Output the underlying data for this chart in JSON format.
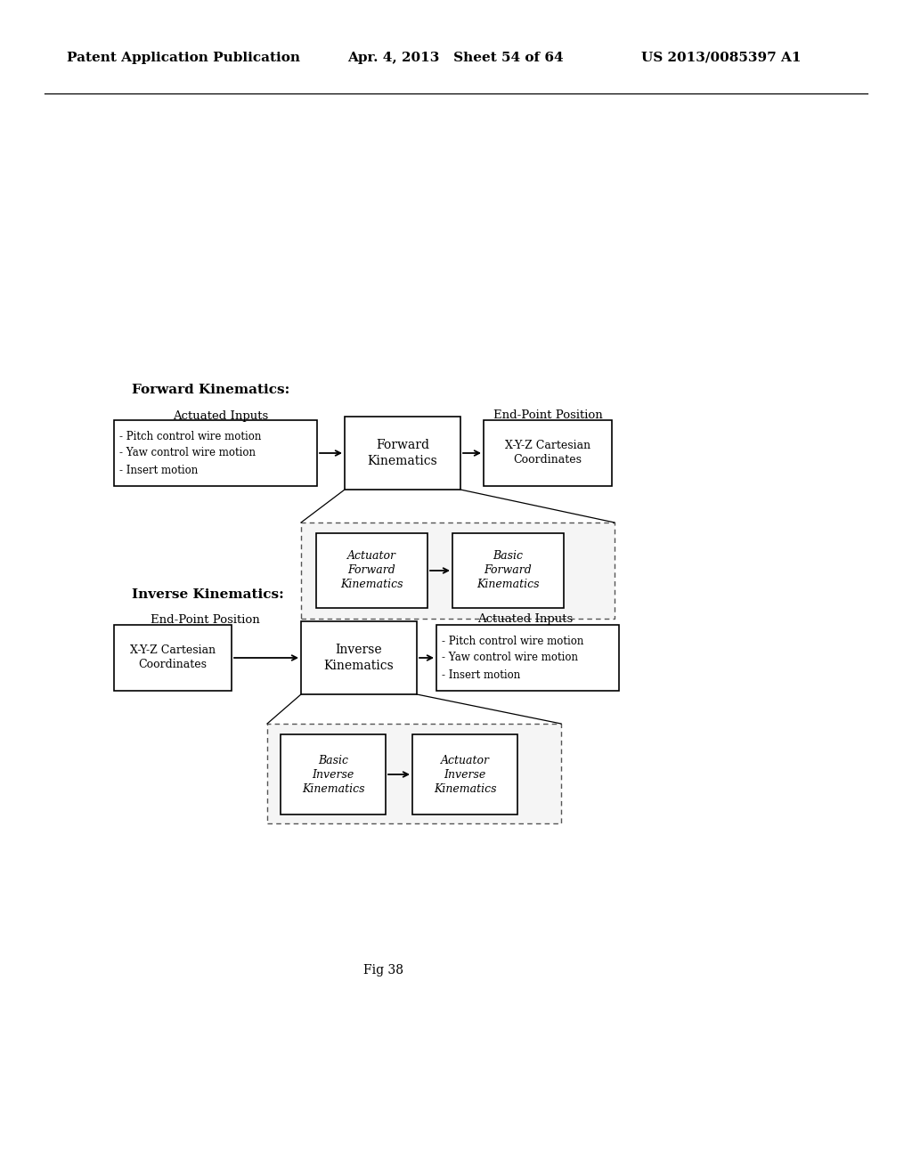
{
  "bg_color": "#ffffff",
  "header_left": "Patent Application Publication",
  "header_mid": "Apr. 4, 2013   Sheet 54 of 64",
  "header_right": "US 2013/0085397 A1",
  "fig_label": "Fig 38",
  "forward_title": "Forward Kinematics:",
  "inverse_title": "Inverse Kinematics:",
  "fwd_actuated_label": "Actuated Inputs",
  "fwd_actuated_lines": [
    "- Pitch control wire motion",
    "- Yaw control wire motion",
    "- Insert motion"
  ],
  "fwd_center_label": "Forward\nKinematics",
  "fwd_endpoint_label": "End-Point Position",
  "fwd_endpoint_box": "X-Y-Z Cartesian\nCoordinates",
  "fwd_sub_left_label": "Actuator\nForward\nKinematics",
  "fwd_sub_right_label": "Basic\nForward\nKinematics",
  "inv_endpoint_label": "End-Point Position",
  "inv_endpoint_box": "X-Y-Z Cartesian\nCoordinates",
  "inv_center_label": "Inverse\nKinematics",
  "inv_actuated_label": "Actuated Inputs",
  "inv_actuated_lines": [
    "- Pitch control wire motion",
    "- Yaw control wire motion",
    "- Insert motion"
  ],
  "inv_sub_left_label": "Basic\nInverse\nKinematics",
  "inv_sub_right_label": "Actuator\nInverse\nKinematics"
}
